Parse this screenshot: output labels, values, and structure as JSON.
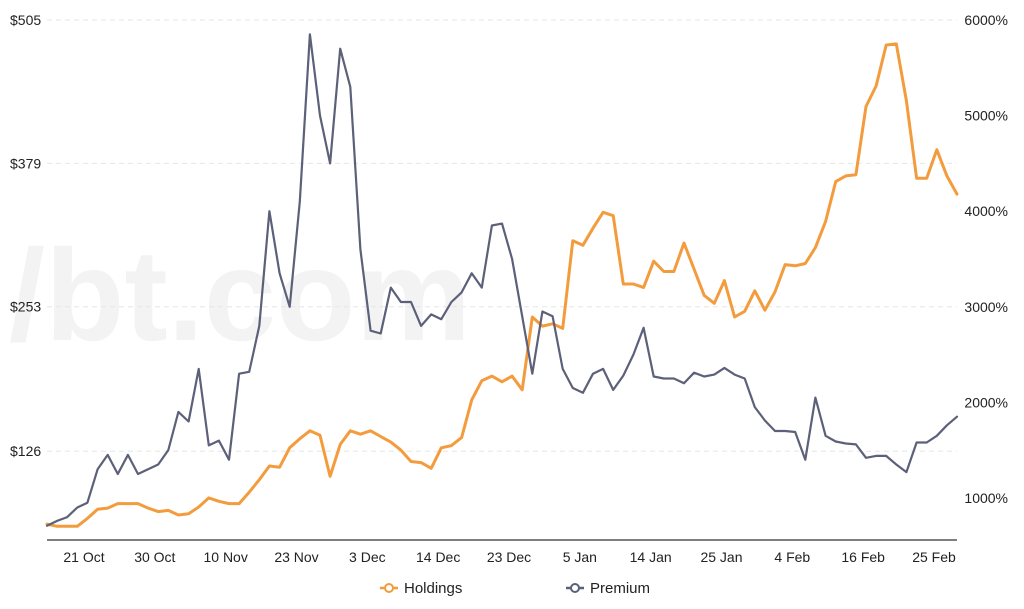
{
  "chart_data": {
    "type": "line",
    "x_tick_labels": [
      "21 Oct",
      "30 Oct",
      "10 Nov",
      "23 Nov",
      "3 Dec",
      "14 Dec",
      "23 Dec",
      "5 Jan",
      "14 Jan",
      "25 Jan",
      "4 Feb",
      "16 Feb",
      "25 Feb"
    ],
    "y_left": {
      "tick_labels": [
        "$126",
        "$253",
        "$379",
        "$505"
      ],
      "ticks": [
        126,
        253,
        379,
        505
      ],
      "lim": [
        48,
        505
      ]
    },
    "y_right": {
      "tick_labels": [
        "1000%",
        "2000%",
        "3000%",
        "4000%",
        "5000%",
        "6000%"
      ],
      "ticks": [
        1000,
        2000,
        3000,
        4000,
        5000,
        6000
      ],
      "lim": [
        560,
        6000
      ]
    },
    "grid": true,
    "legend_position": "bottom",
    "watermark": "/bt.com",
    "series": [
      {
        "name": "Holdings",
        "axis": "left",
        "color": "#f39c3d",
        "values": [
          62,
          60,
          60,
          60,
          67,
          75,
          76,
          80,
          80,
          80,
          76,
          73,
          74,
          70,
          71,
          77,
          85,
          82,
          80,
          80,
          90,
          101,
          113,
          112,
          129,
          137,
          144,
          140,
          104,
          132,
          144,
          141,
          144,
          139,
          134,
          127,
          117,
          116,
          111,
          129,
          131,
          138,
          171,
          188,
          192,
          187,
          192,
          180,
          244,
          236,
          238,
          234,
          311,
          307,
          322,
          336,
          333,
          273,
          273,
          270,
          293,
          284,
          284,
          309,
          286,
          263,
          256,
          276,
          244,
          249,
          267,
          250,
          266,
          290,
          289,
          291,
          305,
          328,
          363,
          368,
          369,
          429,
          447,
          483,
          484,
          434,
          366,
          366,
          391,
          368,
          352
        ]
      },
      {
        "name": "Premium",
        "axis": "right",
        "color": "#5c6079",
        "values": [
          710,
          760,
          800,
          900,
          950,
          1300,
          1450,
          1250,
          1450,
          1250,
          1300,
          1350,
          1500,
          1900,
          1800,
          2350,
          1550,
          1600,
          1400,
          2300,
          2320,
          2800,
          4000,
          3350,
          3000,
          4100,
          5850,
          5000,
          4500,
          5700,
          5300,
          3600,
          2750,
          2720,
          3200,
          3050,
          3050,
          2800,
          2920,
          2870,
          3050,
          3150,
          3350,
          3200,
          3850,
          3870,
          3500,
          2900,
          2300,
          2950,
          2900,
          2350,
          2150,
          2100,
          2300,
          2350,
          2130,
          2280,
          2500,
          2780,
          2270,
          2250,
          2250,
          2200,
          2310,
          2270,
          2290,
          2360,
          2290,
          2250,
          1950,
          1810,
          1700,
          1700,
          1690,
          1400,
          2050,
          1650,
          1590,
          1570,
          1560,
          1420,
          1440,
          1440,
          1350,
          1270,
          1580,
          1580,
          1650,
          1760,
          1850
        ]
      }
    ]
  }
}
